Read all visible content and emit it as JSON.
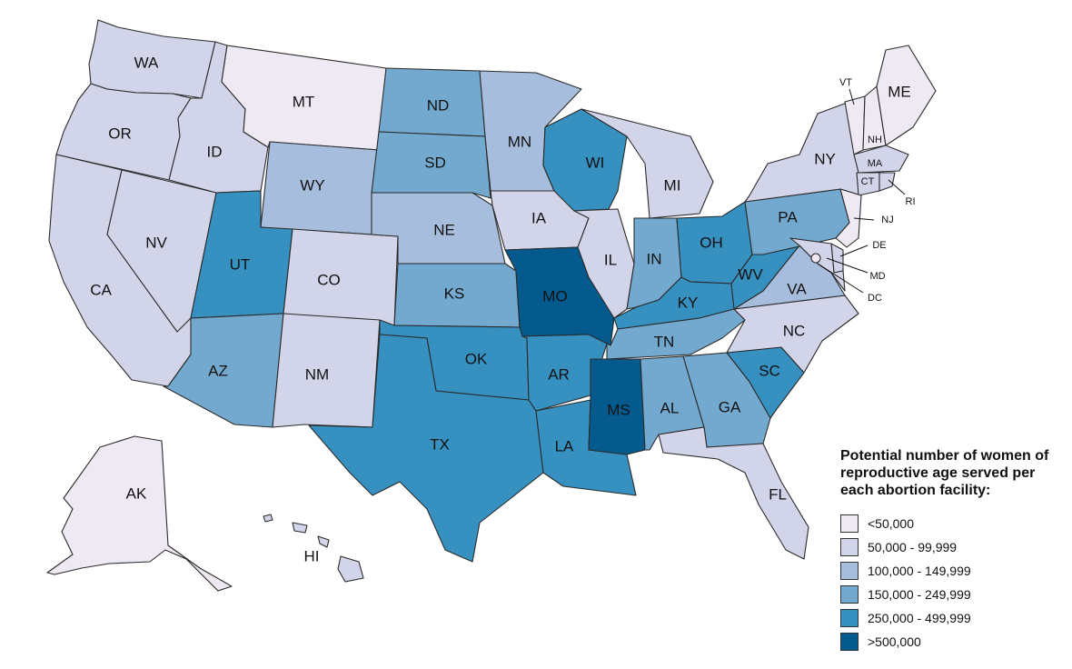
{
  "colors": {
    "c0": "#efe9f4",
    "c1": "#d2d4e9",
    "c2": "#a7bddd",
    "c3": "#74a9cf",
    "c4": "#3690c0",
    "c5": "#045a8d"
  },
  "legend": {
    "title_lines": [
      "Potential number of women of",
      "reproductive age served per",
      "each abortion facility:"
    ],
    "items": [
      {
        "label": "<50,000",
        "class": "c0"
      },
      {
        "label": "50,000 - 99,999",
        "class": "c1"
      },
      {
        "label": "100,000 - 149,999",
        "class": "c2"
      },
      {
        "label": "150,000 - 249,999",
        "class": "c3"
      },
      {
        "label": "250,000 - 499,999",
        "class": "c4"
      },
      {
        "label": ">500,000",
        "class": "c5"
      }
    ]
  },
  "states": [
    {
      "abbr": "WA",
      "class": "c1"
    },
    {
      "abbr": "OR",
      "class": "c1"
    },
    {
      "abbr": "CA",
      "class": "c1"
    },
    {
      "abbr": "NV",
      "class": "c1"
    },
    {
      "abbr": "ID",
      "class": "c1"
    },
    {
      "abbr": "MT",
      "class": "c0"
    },
    {
      "abbr": "WY",
      "class": "c2"
    },
    {
      "abbr": "UT",
      "class": "c4"
    },
    {
      "abbr": "AZ",
      "class": "c3"
    },
    {
      "abbr": "CO",
      "class": "c1"
    },
    {
      "abbr": "NM",
      "class": "c1"
    },
    {
      "abbr": "ND",
      "class": "c3"
    },
    {
      "abbr": "SD",
      "class": "c3"
    },
    {
      "abbr": "NE",
      "class": "c2"
    },
    {
      "abbr": "KS",
      "class": "c3"
    },
    {
      "abbr": "OK",
      "class": "c4"
    },
    {
      "abbr": "TX",
      "class": "c4"
    },
    {
      "abbr": "MN",
      "class": "c2"
    },
    {
      "abbr": "IA",
      "class": "c1"
    },
    {
      "abbr": "MO",
      "class": "c5"
    },
    {
      "abbr": "AR",
      "class": "c4"
    },
    {
      "abbr": "LA",
      "class": "c4"
    },
    {
      "abbr": "WI",
      "class": "c4"
    },
    {
      "abbr": "IL",
      "class": "c1"
    },
    {
      "abbr": "MI",
      "class": "c1"
    },
    {
      "abbr": "IN",
      "class": "c3"
    },
    {
      "abbr": "OH",
      "class": "c4"
    },
    {
      "abbr": "KY",
      "class": "c4"
    },
    {
      "abbr": "TN",
      "class": "c3"
    },
    {
      "abbr": "MS",
      "class": "c5"
    },
    {
      "abbr": "AL",
      "class": "c3"
    },
    {
      "abbr": "GA",
      "class": "c3"
    },
    {
      "abbr": "FL",
      "class": "c1"
    },
    {
      "abbr": "SC",
      "class": "c4"
    },
    {
      "abbr": "NC",
      "class": "c1"
    },
    {
      "abbr": "VA",
      "class": "c2"
    },
    {
      "abbr": "WV",
      "class": "c4"
    },
    {
      "abbr": "PA",
      "class": "c3"
    },
    {
      "abbr": "NY",
      "class": "c1"
    },
    {
      "abbr": "VT",
      "class": "c0"
    },
    {
      "abbr": "NH",
      "class": "c0"
    },
    {
      "abbr": "ME",
      "class": "c0"
    },
    {
      "abbr": "MA",
      "class": "c1"
    },
    {
      "abbr": "CT",
      "class": "c1"
    },
    {
      "abbr": "RI",
      "class": "c1"
    },
    {
      "abbr": "NJ",
      "class": "c0"
    },
    {
      "abbr": "DE",
      "class": "c1"
    },
    {
      "abbr": "MD",
      "class": "c1"
    },
    {
      "abbr": "DC",
      "class": "c0"
    },
    {
      "abbr": "AK",
      "class": "c0"
    },
    {
      "abbr": "HI",
      "class": "c1"
    }
  ]
}
